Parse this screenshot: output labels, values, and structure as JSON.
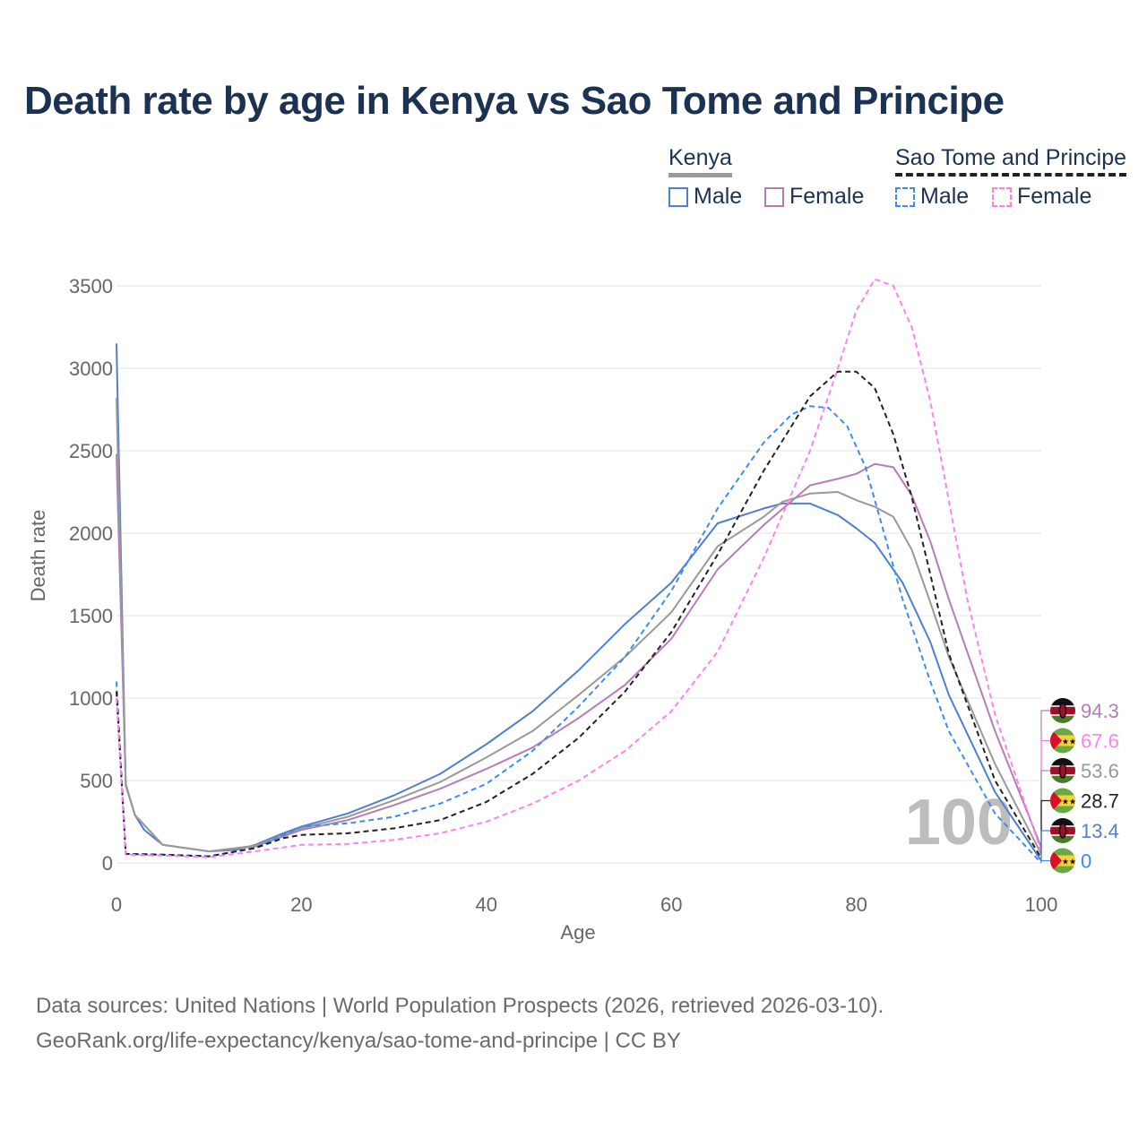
{
  "title": "Death rate by age in Kenya vs Sao Tome and Principe",
  "legend": {
    "groups": [
      {
        "name": "Kenya",
        "style": "solid",
        "line_color": "#999999",
        "items": [
          {
            "label": "Male",
            "color": "#4f7fcf"
          },
          {
            "label": "Female",
            "color": "#b77bb5"
          }
        ]
      },
      {
        "name": "Sao Tome and Principe",
        "style": "dashed",
        "line_color": "#222222",
        "items": [
          {
            "label": "Male",
            "color": "#3d8cf0"
          },
          {
            "label": "Female",
            "color": "#ff80ef"
          }
        ]
      }
    ]
  },
  "footer": {
    "line1": "Data sources: United Nations | World Population Prospects (2026, retrieved 2026-03-10).",
    "line2": "GeoRank.org/life-expectancy/kenya/sao-tome-and-principe | CC BY"
  },
  "chart_data": {
    "type": "line",
    "title": "Death rate by age in Kenya vs Sao Tome and Principe",
    "xlabel": "Age",
    "ylabel": "Death rate",
    "xlim": [
      0,
      100
    ],
    "ylim": [
      0,
      3500
    ],
    "xticks": [
      0,
      20,
      40,
      60,
      80,
      100
    ],
    "yticks": [
      0,
      500,
      1000,
      1500,
      2000,
      2500,
      3000,
      3500
    ],
    "grid": true,
    "watermark": "100",
    "series": [
      {
        "name": "Kenya Male",
        "country": "Kenya",
        "color": "#4f7fcf",
        "dashed": false,
        "end_label": "13.4",
        "x": [
          0,
          1,
          2,
          3,
          5,
          10,
          13,
          15,
          18,
          20,
          25,
          30,
          35,
          40,
          45,
          50,
          55,
          60,
          65,
          70,
          72,
          75,
          78,
          80,
          82,
          85,
          88,
          90,
          95,
          100
        ],
        "y": [
          3150,
          470,
          290,
          200,
          110,
          70,
          80,
          110,
          180,
          220,
          300,
          410,
          540,
          720,
          920,
          1170,
          1450,
          1700,
          2060,
          2150,
          2180,
          2180,
          2110,
          2030,
          1940,
          1700,
          1340,
          1020,
          430,
          13.4
        ]
      },
      {
        "name": "Kenya Female",
        "country": "Kenya",
        "color": "#b77bb5",
        "dashed": false,
        "end_label": "94.3",
        "x": [
          0,
          1,
          2,
          5,
          10,
          15,
          20,
          25,
          30,
          35,
          40,
          45,
          50,
          55,
          60,
          65,
          70,
          75,
          78,
          80,
          82,
          84,
          86,
          88,
          90,
          95,
          100
        ],
        "y": [
          2480,
          480,
          290,
          110,
          70,
          100,
          200,
          260,
          350,
          450,
          570,
          700,
          880,
          1080,
          1360,
          1780,
          2050,
          2290,
          2330,
          2360,
          2420,
          2400,
          2230,
          1950,
          1600,
          800,
          94.3
        ]
      },
      {
        "name": "Kenya Total",
        "country": "Kenya",
        "color": "#999999",
        "dashed": false,
        "end_label": "53.6",
        "x": [
          0,
          1,
          2,
          5,
          10,
          15,
          20,
          25,
          30,
          35,
          40,
          45,
          50,
          55,
          60,
          65,
          70,
          72,
          75,
          78,
          80,
          82,
          84,
          86,
          88,
          90,
          95,
          100
        ],
        "y": [
          2820,
          475,
          290,
          110,
          70,
          105,
          210,
          280,
          380,
          490,
          640,
          800,
          1020,
          1250,
          1520,
          1920,
          2100,
          2190,
          2240,
          2250,
          2200,
          2160,
          2100,
          1900,
          1580,
          1250,
          600,
          53.6
        ]
      },
      {
        "name": "Sao Tome and Principe Male",
        "country": "Sao Tome and Principe",
        "color": "#3d8cf0",
        "dashed": true,
        "end_label": "0",
        "x": [
          0,
          1,
          5,
          10,
          15,
          20,
          25,
          30,
          35,
          40,
          45,
          50,
          55,
          60,
          65,
          70,
          73,
          75,
          77,
          79,
          81,
          83,
          85,
          88,
          90,
          95,
          100
        ],
        "y": [
          1100,
          55,
          50,
          40,
          90,
          220,
          240,
          280,
          360,
          480,
          680,
          950,
          1250,
          1650,
          2150,
          2550,
          2720,
          2770,
          2760,
          2650,
          2400,
          2000,
          1600,
          1100,
          800,
          300,
          0
        ]
      },
      {
        "name": "Sao Tome and Principe Total",
        "country": "Sao Tome and Principe",
        "color": "#222222",
        "dashed": true,
        "end_label": "28.7",
        "x": [
          0,
          1,
          5,
          10,
          15,
          18,
          20,
          25,
          30,
          35,
          40,
          45,
          50,
          55,
          60,
          65,
          70,
          75,
          78,
          80,
          82,
          84,
          86,
          88,
          90,
          95,
          100
        ],
        "y": [
          1040,
          55,
          50,
          40,
          90,
          150,
          170,
          180,
          210,
          260,
          370,
          540,
          760,
          1040,
          1400,
          1870,
          2380,
          2830,
          2980,
          2980,
          2880,
          2600,
          2220,
          1750,
          1270,
          500,
          28.7
        ]
      },
      {
        "name": "Sao Tome and Principe Female",
        "country": "Sao Tome and Principe",
        "color": "#ff80ef",
        "dashed": true,
        "end_label": "67.6",
        "x": [
          0,
          1,
          5,
          10,
          15,
          20,
          25,
          30,
          35,
          40,
          45,
          50,
          55,
          60,
          65,
          70,
          75,
          78,
          80,
          82,
          84,
          86,
          88,
          90,
          92,
          95,
          100
        ],
        "y": [
          1000,
          50,
          45,
          35,
          70,
          110,
          115,
          140,
          180,
          250,
          360,
          500,
          680,
          920,
          1280,
          1850,
          2500,
          3000,
          3350,
          3540,
          3500,
          3250,
          2800,
          2200,
          1600,
          900,
          67.6
        ]
      }
    ],
    "end_label_order": [
      "Kenya Female",
      "Sao Tome and Principe Female",
      "Kenya Total",
      "Sao Tome and Principe Total",
      "Kenya Male",
      "Sao Tome and Principe Male"
    ]
  }
}
